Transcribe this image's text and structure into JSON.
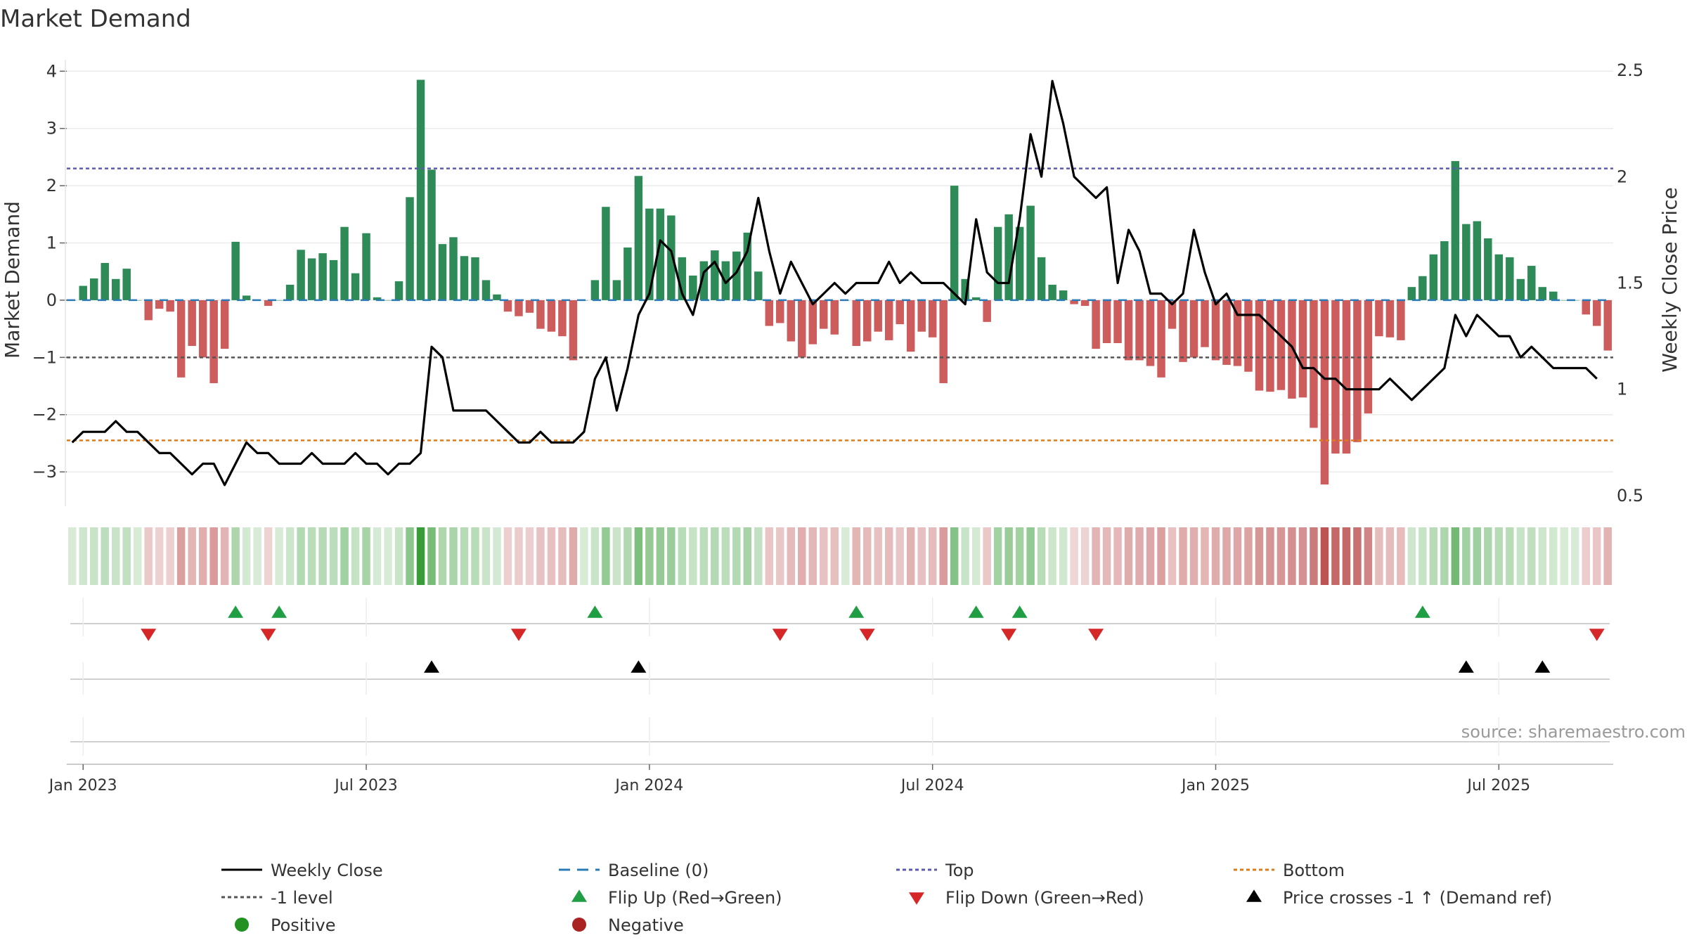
{
  "chart_data": {
    "type": "bar",
    "title": "Market Demand",
    "ylabel": "Market Demand",
    "y2label": "Weekly Close Price",
    "ylim": [
      -3.6,
      4.2
    ],
    "y2lim": [
      0.45,
      2.55
    ],
    "y_ticks": [
      4,
      3,
      2,
      1,
      0,
      -1,
      -2,
      -3
    ],
    "y_tick_labels": [
      "4",
      "3",
      "2",
      "1",
      "0",
      "−1",
      "−2",
      "−3"
    ],
    "y2_ticks": [
      2.5,
      2,
      1.5,
      1,
      0.5
    ],
    "y2_tick_labels": [
      "2.5",
      "2",
      "1.5",
      "1",
      "0.5"
    ],
    "x_ticks": [
      1,
      27,
      53,
      79,
      105,
      131
    ],
    "x_tick_labels": [
      "Jan 2023",
      "Jul 2023",
      "Jan 2024",
      "Jul 2024",
      "Jan 2025",
      "Jul 2025"
    ],
    "reference_lines": {
      "top": 2.3,
      "minus_one": -1,
      "bottom": -2.45,
      "baseline": 0
    },
    "series": [
      {
        "name": "Market Demand",
        "values": [
          0.0,
          0.25,
          0.38,
          0.65,
          0.37,
          0.55,
          0.0,
          -0.35,
          -0.15,
          -0.2,
          -1.35,
          -0.8,
          -1.0,
          -1.45,
          -0.85,
          1.02,
          0.08,
          0.0,
          -0.1,
          0.0,
          0.27,
          0.88,
          0.73,
          0.82,
          0.7,
          1.28,
          0.47,
          1.17,
          0.05,
          0.0,
          0.33,
          1.8,
          3.85,
          2.28,
          0.98,
          1.1,
          0.77,
          0.75,
          0.35,
          0.1,
          -0.2,
          -0.28,
          -0.22,
          -0.5,
          -0.55,
          -0.63,
          -1.05,
          0.0,
          0.35,
          1.63,
          0.35,
          0.92,
          2.17,
          1.6,
          1.6,
          1.48,
          0.75,
          0.43,
          0.68,
          0.87,
          0.68,
          0.85,
          1.18,
          0.5,
          -0.45,
          -0.4,
          -0.72,
          -1.0,
          -0.77,
          -0.5,
          -0.6,
          0.0,
          -0.8,
          -0.72,
          -0.55,
          -0.7,
          -0.42,
          -0.9,
          -0.55,
          -0.65,
          -1.45,
          2.0,
          0.37,
          0.05,
          -0.38,
          1.28,
          1.5,
          1.28,
          1.65,
          0.75,
          0.27,
          0.17,
          -0.07,
          -0.1,
          -0.85,
          -0.75,
          -0.75,
          -1.05,
          -1.05,
          -1.15,
          -1.35,
          -0.5,
          -1.08,
          -1.0,
          -0.82,
          -1.05,
          -1.13,
          -1.15,
          -1.25,
          -1.58,
          -1.6,
          -1.57,
          -1.72,
          -1.7,
          -2.23,
          -3.22,
          -2.68,
          -2.68,
          -2.48,
          -1.98,
          -0.63,
          -0.65,
          -0.7,
          0.23,
          0.42,
          0.8,
          1.03,
          2.43,
          1.33,
          1.38,
          1.08,
          0.8,
          0.75,
          0.37,
          0.6,
          0.23,
          0.15,
          0.0,
          0.0,
          -0.25,
          -0.45,
          -0.88
        ]
      },
      {
        "name": "Weekly Close",
        "values": [
          0.75,
          0.8,
          0.8,
          0.8,
          0.85,
          0.8,
          0.8,
          0.75,
          0.7,
          0.7,
          0.65,
          0.6,
          0.65,
          0.65,
          0.55,
          0.65,
          0.75,
          0.7,
          0.7,
          0.65,
          0.65,
          0.65,
          0.7,
          0.65,
          0.65,
          0.65,
          0.7,
          0.65,
          0.65,
          0.6,
          0.65,
          0.65,
          0.7,
          1.2,
          1.15,
          0.9,
          0.9,
          0.9,
          0.9,
          0.85,
          0.8,
          0.75,
          0.75,
          0.8,
          0.75,
          0.75,
          0.75,
          0.8,
          1.05,
          1.15,
          0.9,
          1.1,
          1.35,
          1.45,
          1.7,
          1.65,
          1.45,
          1.35,
          1.55,
          1.6,
          1.5,
          1.55,
          1.65,
          1.9,
          1.65,
          1.45,
          1.6,
          1.5,
          1.4,
          1.45,
          1.5,
          1.45,
          1.5,
          1.5,
          1.5,
          1.6,
          1.5,
          1.55,
          1.5,
          1.5,
          1.5,
          1.45,
          1.4,
          1.8,
          1.55,
          1.5,
          1.5,
          1.8,
          2.2,
          2.0,
          2.45,
          2.25,
          2.0,
          1.95,
          1.9,
          1.95,
          1.5,
          1.75,
          1.65,
          1.45,
          1.45,
          1.4,
          1.45,
          1.75,
          1.55,
          1.4,
          1.45,
          1.35,
          1.35,
          1.35,
          1.3,
          1.25,
          1.2,
          1.1,
          1.1,
          1.05,
          1.05,
          1.0,
          1.0,
          1.0,
          1.0,
          1.05,
          1.0,
          0.95,
          1.0,
          1.05,
          1.1,
          1.35,
          1.25,
          1.35,
          1.3,
          1.25,
          1.25,
          1.15,
          1.2,
          1.15,
          1.1,
          1.1,
          1.1,
          1.1,
          1.05
        ]
      }
    ],
    "flip_up_indices": [
      15,
      19,
      48,
      72,
      83,
      87,
      124
    ],
    "flip_down_indices": [
      7,
      18,
      41,
      65,
      73,
      86,
      94,
      140
    ],
    "price_cross_indices": [
      33,
      52,
      128,
      135
    ],
    "legend": [
      {
        "label": "Weekly Close",
        "marker": "line",
        "color": "#000000"
      },
      {
        "label": "Baseline (0)",
        "marker": "dash",
        "color": "#2b7bb9"
      },
      {
        "label": "Top",
        "marker": "dot",
        "color": "#5b5bb0"
      },
      {
        "label": "Bottom",
        "marker": "dot",
        "color": "#e07b1a"
      },
      {
        "label": "-1 level",
        "marker": "dot",
        "color": "#555555"
      },
      {
        "label": "Flip Up (Red→Green)",
        "marker": "triangle-up",
        "color": "#1f9e44"
      },
      {
        "label": "Flip Down (Green→Red)",
        "marker": "triangle-down",
        "color": "#d62728"
      },
      {
        "label": "Price crosses -1 ↑ (Demand ref)",
        "marker": "triangle-up",
        "color": "#000000"
      },
      {
        "label": "Positive",
        "marker": "circle",
        "color": "#229122"
      },
      {
        "label": "Negative",
        "marker": "circle",
        "color": "#aa2222"
      }
    ],
    "legend_position": "bottom",
    "source": "source: sharemaestro.com",
    "colors": {
      "positive_bar": "#2e8b57",
      "negative_bar": "#cd5c5c",
      "price_line": "#000000",
      "top_line": "#5b5bb0",
      "bottom_line": "#e07b1a",
      "minus_one_line": "#555555",
      "baseline": "#2b7bb9"
    }
  }
}
